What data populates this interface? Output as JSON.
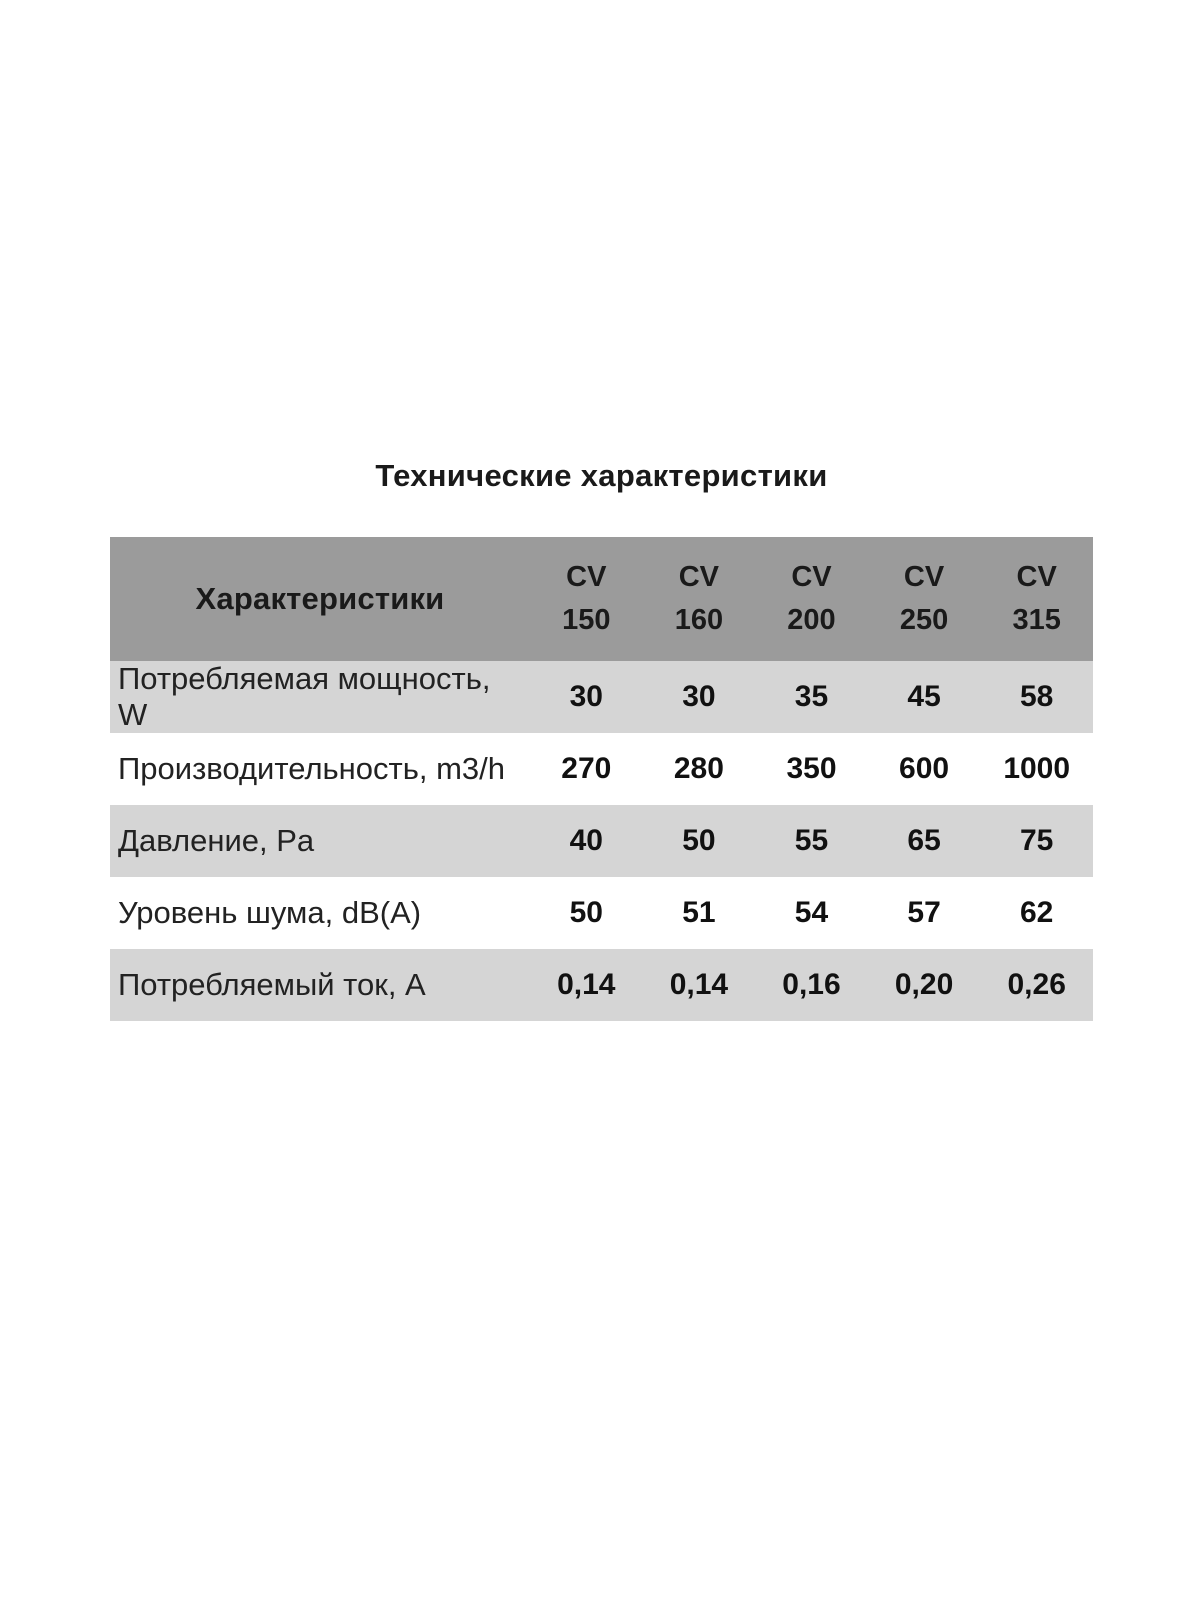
{
  "title": "Технические характеристики",
  "table": {
    "label_header": "Характеристики",
    "models": [
      {
        "series": "CV",
        "size": "150"
      },
      {
        "series": "CV",
        "size": "160"
      },
      {
        "series": "CV",
        "size": "200"
      },
      {
        "series": "CV",
        "size": "250"
      },
      {
        "series": "CV",
        "size": "315"
      }
    ],
    "rows": [
      {
        "label": "Потребляемая мощность,\nW",
        "values": [
          "30",
          "30",
          "35",
          "45",
          "58"
        ]
      },
      {
        "label": "Производительность, m3/h",
        "values": [
          "270",
          "280",
          "350",
          "600",
          "1000"
        ]
      },
      {
        "label": "Давление, Pa",
        "values": [
          "40",
          "50",
          "55",
          "65",
          "75"
        ]
      },
      {
        "label": "Уровень шума, dB(A)",
        "values": [
          "50",
          "51",
          "54",
          "57",
          "62"
        ]
      },
      {
        "label": "Потребляемый ток, A",
        "values": [
          "0,14",
          "0,14",
          "0,16",
          "0,20",
          "0,26"
        ]
      }
    ]
  },
  "colors": {
    "header_bg": "#9b9b9b",
    "row_alt_bg": "#d5d5d5",
    "text_color": "#1a1a1a"
  }
}
